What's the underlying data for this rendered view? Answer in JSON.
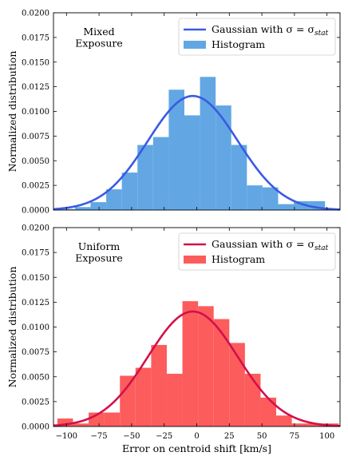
{
  "chart_data": [
    {
      "type": "bar",
      "annotation": [
        "Mixed",
        "Exposure"
      ],
      "ylabel": "Normalized distribution",
      "xlabel": "",
      "xlim": [
        -110,
        110
      ],
      "ylim": [
        0,
        0.02
      ],
      "x_ticks": [
        -100,
        -75,
        -50,
        -25,
        0,
        25,
        50,
        75,
        100
      ],
      "y_ticks": [
        "0.0000",
        "0.0025",
        "0.0050",
        "0.0075",
        "0.0100",
        "0.0125",
        "0.0150",
        "0.0175",
        "0.0200"
      ],
      "legend": {
        "position": "top-right",
        "items": [
          {
            "label": "Gaussian with σ = σ",
            "sub": "stat",
            "kind": "line"
          },
          {
            "label": "Histogram",
            "kind": "patch"
          }
        ]
      },
      "histogram": {
        "name": "Histogram",
        "color": "#62a7e3",
        "bins": [
          {
            "x0": -105.5,
            "x1": -93.5,
            "value": 0.0001
          },
          {
            "x0": -93.5,
            "x1": -81.5,
            "value": 0.0003
          },
          {
            "x0": -81.5,
            "x1": -69.5,
            "value": 0.0008
          },
          {
            "x0": -69.5,
            "x1": -57.5,
            "value": 0.0021
          },
          {
            "x0": -57.5,
            "x1": -45.5,
            "value": 0.0038
          },
          {
            "x0": -45.5,
            "x1": -33.5,
            "value": 0.0066
          },
          {
            "x0": -33.5,
            "x1": -21.5,
            "value": 0.0074
          },
          {
            "x0": -21.5,
            "x1": -9.5,
            "value": 0.0122
          },
          {
            "x0": -9.5,
            "x1": 2.5,
            "value": 0.0096
          },
          {
            "x0": 2.5,
            "x1": 14.5,
            "value": 0.0135
          },
          {
            "x0": 14.5,
            "x1": 26.5,
            "value": 0.0106
          },
          {
            "x0": 26.5,
            "x1": 38.5,
            "value": 0.0066
          },
          {
            "x0": 38.5,
            "x1": 50.5,
            "value": 0.0025
          },
          {
            "x0": 50.5,
            "x1": 62.5,
            "value": 0.0023
          },
          {
            "x0": 62.5,
            "x1": 74.5,
            "value": 0.0006
          },
          {
            "x0": 74.5,
            "x1": 86.5,
            "value": 0.0009
          },
          {
            "x0": 86.5,
            "x1": 98.5,
            "value": 0.0009
          }
        ]
      },
      "gaussian": {
        "name": "Gaussian with σ = σstat",
        "color": "#3a5ae3",
        "mean": -3,
        "sigma": 34.5
      }
    },
    {
      "type": "bar",
      "annotation": [
        "Uniform",
        "Exposure"
      ],
      "ylabel": "Normalized distribution",
      "xlabel": "Error on centroid shift [km/s]",
      "xlim": [
        -110,
        110
      ],
      "ylim": [
        0,
        0.02
      ],
      "x_ticks": [
        -100,
        -75,
        -50,
        -25,
        0,
        25,
        50,
        75,
        100
      ],
      "y_ticks": [
        "0.0000",
        "0.0025",
        "0.0050",
        "0.0075",
        "0.0100",
        "0.0125",
        "0.0150",
        "0.0175",
        "0.0200"
      ],
      "legend": {
        "position": "top-right",
        "items": [
          {
            "label": "Gaussian with σ = σ",
            "sub": "stat",
            "kind": "line"
          },
          {
            "label": "Histogram",
            "kind": "patch"
          }
        ]
      },
      "histogram": {
        "name": "Histogram",
        "color": "#fc5c5c",
        "bins": [
          {
            "x0": -107,
            "x1": -95,
            "value": 0.0008
          },
          {
            "x0": -95,
            "x1": -83,
            "value": 0.0003
          },
          {
            "x0": -83,
            "x1": -71,
            "value": 0.0014
          },
          {
            "x0": -71,
            "x1": -59,
            "value": 0.0014
          },
          {
            "x0": -59,
            "x1": -47,
            "value": 0.0051
          },
          {
            "x0": -47,
            "x1": -35,
            "value": 0.0059
          },
          {
            "x0": -35,
            "x1": -23,
            "value": 0.0082
          },
          {
            "x0": -23,
            "x1": -11,
            "value": 0.0053
          },
          {
            "x0": -11,
            "x1": 1,
            "value": 0.0126
          },
          {
            "x0": 1,
            "x1": 13,
            "value": 0.0121
          },
          {
            "x0": 13,
            "x1": 25,
            "value": 0.0108
          },
          {
            "x0": 25,
            "x1": 37,
            "value": 0.0084
          },
          {
            "x0": 37,
            "x1": 49,
            "value": 0.0053
          },
          {
            "x0": 49,
            "x1": 61,
            "value": 0.0029
          },
          {
            "x0": 61,
            "x1": 73,
            "value": 0.0011
          },
          {
            "x0": 73,
            "x1": 85,
            "value": 0.0003
          },
          {
            "x0": 85,
            "x1": 97,
            "value": 0.0003
          },
          {
            "x0": 97,
            "x1": 109,
            "value": 0.0003
          }
        ]
      },
      "gaussian": {
        "name": "Gaussian with σ = σstat",
        "color": "#d3104a",
        "mean": -3,
        "sigma": 34.5
      }
    }
  ]
}
